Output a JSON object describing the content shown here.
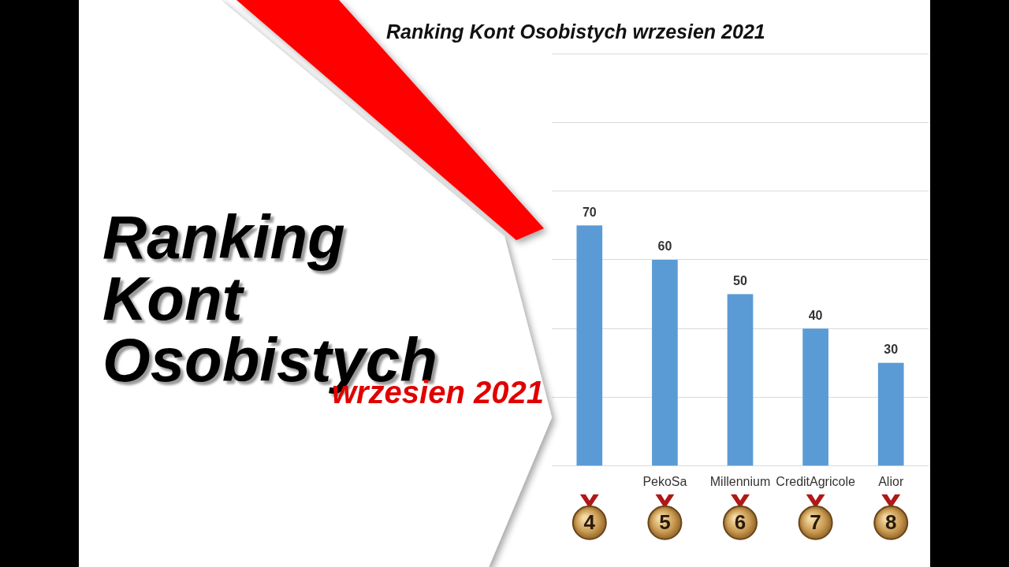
{
  "chart_data": {
    "type": "bar",
    "title": "Ranking Kont Osobistych wrzesien 2021",
    "categories": [
      null,
      "PekoSa",
      "Millennium",
      "CreditAgricole",
      "Alior"
    ],
    "values": [
      70,
      60,
      50,
      40,
      30
    ],
    "ranks": [
      4,
      5,
      6,
      7,
      8
    ],
    "color": "#5b9bd5",
    "ylim": [
      0,
      120
    ],
    "yticks": [
      0,
      20,
      40,
      60,
      80,
      100,
      120
    ],
    "grid": true,
    "data_labels": true,
    "tick_labels": "x",
    "annotations": [
      "Ranking",
      "Kont",
      "Osobistych",
      "wrzesien 2021"
    ]
  }
}
